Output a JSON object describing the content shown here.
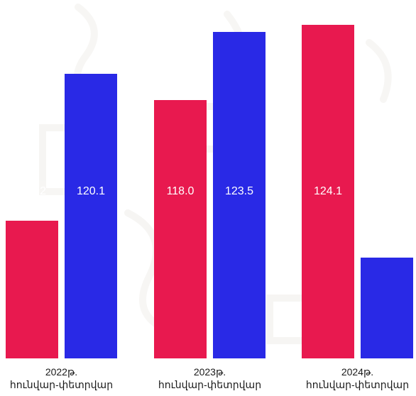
{
  "chart_data": {
    "type": "bar",
    "categories": [
      [
        "2022թ.",
        "հունվար-փետրվար"
      ],
      [
        "2023թ.",
        "հունվար-փետրվար"
      ],
      [
        "2024թ.",
        "հունվար-փետրվար"
      ]
    ],
    "series": [
      {
        "values": [
          108.2,
          118.0,
          124.1
        ],
        "color": "#e8194f"
      },
      {
        "values": [
          120.1,
          123.5,
          105.2
        ],
        "color": "#2929e6"
      }
    ],
    "data_labels": [
      [
        "108.2",
        "118.0",
        "124.1"
      ],
      [
        "120.1",
        "123.5",
        "105.2"
      ]
    ],
    "ylim": [
      97,
      126
    ],
    "grid": false,
    "legend": "none",
    "label_color": "#ffffff",
    "background_watermark": "faded stone texture"
  }
}
